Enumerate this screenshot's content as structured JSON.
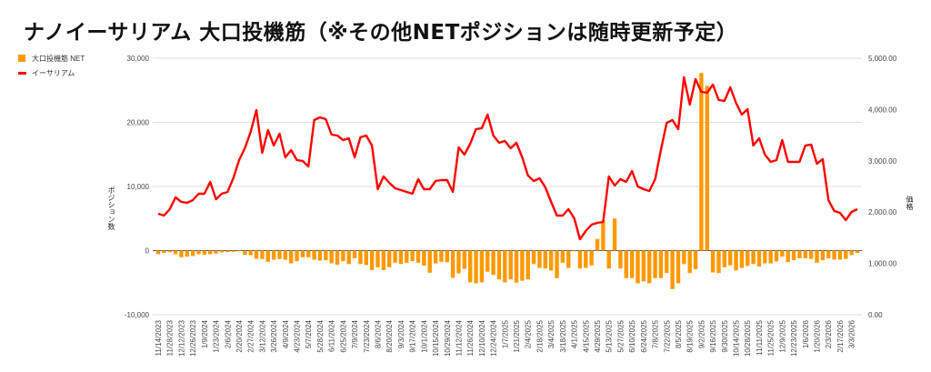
{
  "title": "ナノイーサリアム 大口投機筋（※その他NETポジションは随時更新予定）",
  "chart_data": {
    "type": "bar+line",
    "title": "ナノイーサリアム 大口投機筋（※その他NETポジションは随時更新予定）",
    "legend": [
      "大口投機筋 NET",
      "イーサリアム"
    ],
    "legend_position": "top-left",
    "ylabel_left": "ポジション数",
    "ylabel_right": "価格",
    "ylim_left": [
      -10000,
      30000
    ],
    "ylim_right": [
      0,
      5000
    ],
    "yticks_left": [
      "30,000",
      "20,000",
      "10,000",
      "0",
      "-10,000"
    ],
    "yticks_left_values": [
      30000,
      20000,
      10000,
      0,
      -10000
    ],
    "yticks_right": [
      "5,000.00",
      "4,000.00",
      "3,000.00",
      "2,000.00",
      "1,000.00",
      "0.00"
    ],
    "yticks_right_values": [
      5000,
      4000,
      3000,
      2000,
      1000,
      0
    ],
    "grid": true,
    "xtick_labels": [
      "11/14/2023",
      "11/28/2023",
      "12/12/2023",
      "12/26/2023",
      "1/9/2024",
      "1/23/2024",
      "2/6/2024",
      "2/20/2024",
      "2/27/2024",
      "3/12/2024",
      "3/26/2024",
      "4/9/2024",
      "4/23/2024",
      "5/7/2024",
      "5/28/2024",
      "6/11/2024",
      "6/25/2024",
      "7/9/2024",
      "7/23/2024",
      "8/6/2024",
      "8/20/2024",
      "9/3/2024",
      "9/17/2024",
      "10/1/2024",
      "10/15/2024",
      "10/29/2024",
      "11/12/2024",
      "11/26/2024",
      "12/10/2024",
      "12/24/2024",
      "1/7/2025",
      "1/21/2025",
      "2/4/2025",
      "2/18/2025",
      "3/4/2025",
      "3/18/2025",
      "4/1/2025",
      "4/15/2025",
      "4/29/2025",
      "5/13/2025",
      "5/27/2025",
      "6/10/2025",
      "6/24/2025",
      "7/8/2025",
      "7/22/2025",
      "8/5/2025",
      "8/19/2025",
      "9/2/2025",
      "9/16/2025",
      "9/30/2025",
      "10/14/2025",
      "10/28/2025",
      "11/11/2025",
      "11/25/2025",
      "12/9/2025",
      "12/23/2025",
      "1/6/2026",
      "1/20/2026",
      "2/3/2026",
      "2/17/2026",
      "3/3/2026"
    ],
    "series": [
      {
        "name": "大口投機筋 NET",
        "type": "bar",
        "color": "#ff9900",
        "axis": "left",
        "values": [
          -570,
          -380,
          -240,
          -570,
          -1040,
          -950,
          -850,
          -570,
          -660,
          -570,
          -470,
          -280,
          -240,
          -190,
          -90,
          -660,
          -710,
          -1280,
          -1320,
          -1750,
          -1420,
          -1320,
          -1420,
          -1990,
          -1660,
          -1040,
          -1040,
          -1420,
          -1560,
          -1510,
          -1990,
          -2220,
          -1650,
          -2100,
          -1200,
          -2100,
          -2250,
          -3050,
          -2600,
          -3050,
          -2600,
          -1900,
          -2100,
          -1900,
          -1650,
          -1900,
          -2350,
          -3450,
          -2000,
          -1750,
          -1800,
          -4250,
          -3550,
          -2850,
          -4950,
          -5100,
          -4950,
          -3300,
          -3800,
          -4500,
          -4950,
          -4500,
          -5000,
          -4700,
          -4500,
          -2100,
          -2700,
          -2800,
          -3100,
          -4300,
          -1900,
          -2700,
          -100,
          -2800,
          -2700,
          -2300,
          1800,
          4700,
          -2800,
          5000,
          -2800,
          -4300,
          -4300,
          -5100,
          -4800,
          -5100,
          -4300,
          -4300,
          -3500,
          -6000,
          -5100,
          -2100,
          -3500,
          -2900,
          27700,
          25700,
          -3400,
          -3500,
          -2600,
          -2300,
          -3100,
          -2700,
          -2400,
          -2100,
          -2500,
          -2000,
          -2000,
          -1700,
          -950,
          -1800,
          -1500,
          -1200,
          -1200,
          -1300,
          -1900,
          -1500,
          -1200,
          -1400,
          -1400,
          -1300,
          -700,
          -380
        ]
      },
      {
        "name": "イーサリアム",
        "type": "line",
        "color": "#ff0000",
        "axis": "right",
        "values": [
          1968,
          1933,
          2057,
          2287,
          2198,
          2181,
          2234,
          2358,
          2358,
          2589,
          2252,
          2358,
          2394,
          2660,
          3014,
          3245,
          3564,
          3989,
          3156,
          3599,
          3298,
          3528,
          3067,
          3209,
          3014,
          2996,
          2890,
          3794,
          3847,
          3812,
          3511,
          3493,
          3404,
          3440,
          3067,
          3458,
          3493,
          3298,
          2447,
          2695,
          2571,
          2464,
          2429,
          2394,
          2358,
          2642,
          2447,
          2447,
          2606,
          2624,
          2624,
          2394,
          3262,
          3120,
          3333,
          3617,
          3635,
          3901,
          3493,
          3351,
          3386,
          3245,
          3351,
          3067,
          2713,
          2606,
          2660,
          2482,
          2198,
          1933,
          1933,
          2057,
          1879,
          1472,
          1631,
          1755,
          1791,
          1808,
          2695,
          2518,
          2642,
          2589,
          2801,
          2500,
          2447,
          2411,
          2642,
          3209,
          3741,
          3794,
          3617,
          4628,
          4096,
          4592,
          4344,
          4326,
          4486,
          4184,
          4167,
          4433,
          4131,
          3901,
          4007,
          3298,
          3440,
          3120,
          2979,
          3014,
          3404,
          2979,
          2979,
          2979,
          3298,
          3316,
          2943,
          3032,
          2234,
          2021,
          1986,
          1844,
          2003,
          2057
        ]
      }
    ]
  }
}
